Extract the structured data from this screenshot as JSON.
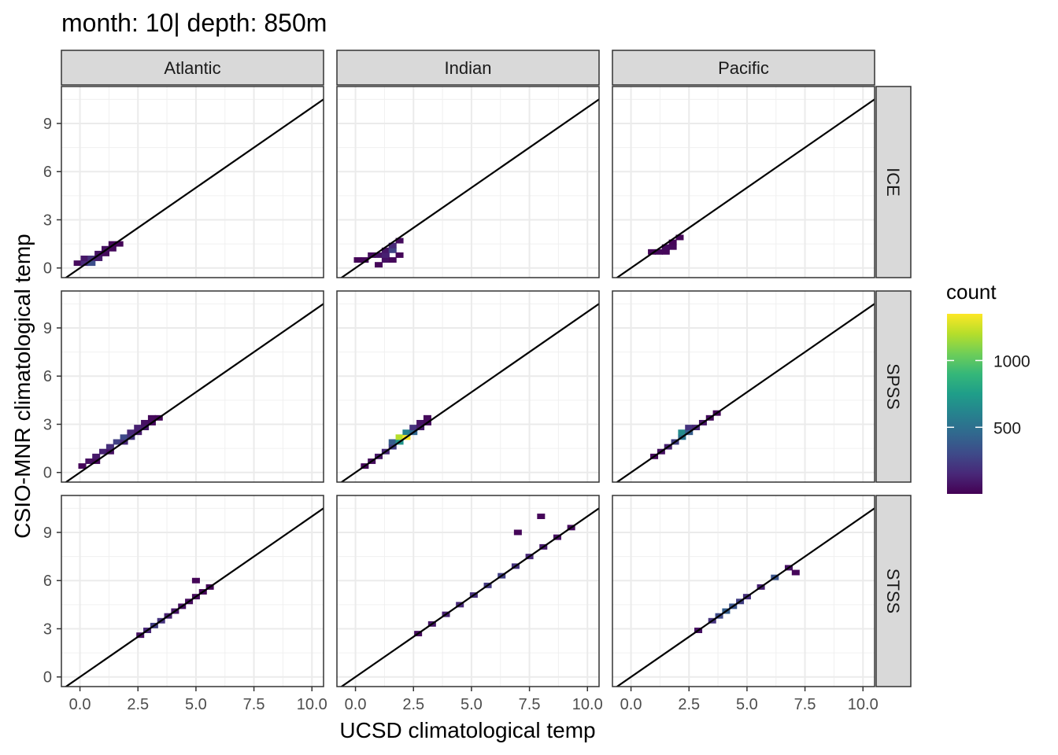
{
  "chart_data": {
    "type": "heatmap",
    "title": "month: 10| depth: 850m",
    "xlabel": "UCSD climatological temp",
    "ylabel": "CSIO-MNR climatological temp",
    "columns": [
      "Atlantic",
      "Indian",
      "Pacific"
    ],
    "rows": [
      "ICE",
      "SPSS",
      "STSS"
    ],
    "xlim": [
      -0.8,
      10.5
    ],
    "ylim": [
      -0.6,
      11.3
    ],
    "x_ticks": [
      0,
      2.5,
      5,
      7.5,
      10
    ],
    "x_tick_labels": [
      "0.0",
      "2.5",
      "5.0",
      "7.5",
      "10.0"
    ],
    "y_ticks": [
      0,
      3,
      6,
      9
    ],
    "y_tick_labels": [
      "0",
      "3",
      "6",
      "9"
    ],
    "reference_line": {
      "slope": 1,
      "intercept": 0
    },
    "grid": true,
    "bin_size": 0.34,
    "legend": {
      "title": "count",
      "position": "right",
      "range": [
        1,
        1350
      ],
      "ticks": [
        500,
        1000
      ],
      "tick_labels": [
        "500",
        "1000"
      ],
      "colorscale": [
        "#440154",
        "#482878",
        "#3e4a89",
        "#31688e",
        "#26828e",
        "#1f9e89",
        "#35b779",
        "#6ece58",
        "#b5de2b",
        "#fde725"
      ]
    },
    "panels": [
      {
        "column": "Atlantic",
        "row": "ICE",
        "bins": [
          {
            "x": -0.1,
            "y": 0.3,
            "count": 30
          },
          {
            "x": 0.2,
            "y": 0.3,
            "count": 150
          },
          {
            "x": 0.5,
            "y": 0.3,
            "count": 320
          },
          {
            "x": 0.2,
            "y": 0.6,
            "count": 90
          },
          {
            "x": 0.5,
            "y": 0.6,
            "count": 180
          },
          {
            "x": 0.8,
            "y": 0.6,
            "count": 110
          },
          {
            "x": 0.8,
            "y": 0.9,
            "count": 70
          },
          {
            "x": 1.1,
            "y": 0.9,
            "count": 40
          },
          {
            "x": 1.1,
            "y": 1.2,
            "count": 60
          },
          {
            "x": 1.4,
            "y": 1.2,
            "count": 30
          },
          {
            "x": 1.4,
            "y": 1.5,
            "count": 20
          },
          {
            "x": 1.7,
            "y": 1.5,
            "count": 15
          }
        ]
      },
      {
        "column": "Indian",
        "row": "ICE",
        "bins": [
          {
            "x": 0.1,
            "y": 0.5,
            "count": 15
          },
          {
            "x": 0.4,
            "y": 0.5,
            "count": 25
          },
          {
            "x": 0.7,
            "y": 0.8,
            "count": 40
          },
          {
            "x": 1.0,
            "y": 0.8,
            "count": 70
          },
          {
            "x": 1.0,
            "y": 0.2,
            "count": 20
          },
          {
            "x": 1.3,
            "y": 0.5,
            "count": 60
          },
          {
            "x": 1.3,
            "y": 0.8,
            "count": 120
          },
          {
            "x": 1.3,
            "y": 1.1,
            "count": 80
          },
          {
            "x": 1.6,
            "y": 1.1,
            "count": 260
          },
          {
            "x": 1.6,
            "y": 1.4,
            "count": 150
          },
          {
            "x": 1.9,
            "y": 1.7,
            "count": 40
          },
          {
            "x": 1.6,
            "y": 0.5,
            "count": 30
          },
          {
            "x": 1.9,
            "y": 0.8,
            "count": 20
          }
        ]
      },
      {
        "column": "Pacific",
        "row": "ICE",
        "bins": [
          {
            "x": 0.9,
            "y": 1.0,
            "count": 20
          },
          {
            "x": 1.2,
            "y": 1.0,
            "count": 30
          },
          {
            "x": 1.5,
            "y": 1.0,
            "count": 25
          },
          {
            "x": 1.5,
            "y": 1.3,
            "count": 45
          },
          {
            "x": 1.8,
            "y": 1.3,
            "count": 35
          },
          {
            "x": 1.8,
            "y": 1.6,
            "count": 20
          },
          {
            "x": 2.1,
            "y": 1.9,
            "count": 15
          }
        ]
      },
      {
        "column": "Atlantic",
        "row": "SPSS",
        "bins": [
          {
            "x": 0.1,
            "y": 0.4,
            "count": 20
          },
          {
            "x": 0.4,
            "y": 0.7,
            "count": 60
          },
          {
            "x": 0.7,
            "y": 0.7,
            "count": 30
          },
          {
            "x": 0.7,
            "y": 1.0,
            "count": 90
          },
          {
            "x": 1.0,
            "y": 1.3,
            "count": 120
          },
          {
            "x": 1.3,
            "y": 1.3,
            "count": 60
          },
          {
            "x": 1.3,
            "y": 1.6,
            "count": 180
          },
          {
            "x": 1.6,
            "y": 1.9,
            "count": 260
          },
          {
            "x": 1.9,
            "y": 1.9,
            "count": 150
          },
          {
            "x": 1.9,
            "y": 2.2,
            "count": 300
          },
          {
            "x": 2.2,
            "y": 2.2,
            "count": 200
          },
          {
            "x": 2.2,
            "y": 2.5,
            "count": 150
          },
          {
            "x": 2.5,
            "y": 2.5,
            "count": 100
          },
          {
            "x": 2.5,
            "y": 2.8,
            "count": 120
          },
          {
            "x": 2.8,
            "y": 2.8,
            "count": 90
          },
          {
            "x": 2.8,
            "y": 3.1,
            "count": 60
          },
          {
            "x": 3.1,
            "y": 3.1,
            "count": 40
          },
          {
            "x": 3.1,
            "y": 3.4,
            "count": 30
          },
          {
            "x": 3.4,
            "y": 3.4,
            "count": 20
          }
        ]
      },
      {
        "column": "Indian",
        "row": "SPSS",
        "bins": [
          {
            "x": 0.4,
            "y": 0.4,
            "count": 20
          },
          {
            "x": 0.7,
            "y": 0.7,
            "count": 40
          },
          {
            "x": 1.0,
            "y": 1.0,
            "count": 80
          },
          {
            "x": 1.3,
            "y": 1.3,
            "count": 150
          },
          {
            "x": 1.6,
            "y": 1.6,
            "count": 250
          },
          {
            "x": 1.6,
            "y": 1.9,
            "count": 400
          },
          {
            "x": 1.9,
            "y": 1.9,
            "count": 700
          },
          {
            "x": 1.9,
            "y": 2.2,
            "count": 1200
          },
          {
            "x": 2.2,
            "y": 2.2,
            "count": 1350
          },
          {
            "x": 2.2,
            "y": 2.5,
            "count": 600
          },
          {
            "x": 2.5,
            "y": 2.5,
            "count": 450
          },
          {
            "x": 2.5,
            "y": 2.8,
            "count": 200
          },
          {
            "x": 2.8,
            "y": 2.8,
            "count": 100
          },
          {
            "x": 2.8,
            "y": 3.1,
            "count": 70
          },
          {
            "x": 3.1,
            "y": 3.1,
            "count": 40
          },
          {
            "x": 3.1,
            "y": 3.4,
            "count": 30
          }
        ]
      },
      {
        "column": "Pacific",
        "row": "SPSS",
        "bins": [
          {
            "x": 1.0,
            "y": 1.0,
            "count": 30
          },
          {
            "x": 1.3,
            "y": 1.3,
            "count": 60
          },
          {
            "x": 1.6,
            "y": 1.6,
            "count": 120
          },
          {
            "x": 1.9,
            "y": 1.9,
            "count": 250
          },
          {
            "x": 2.2,
            "y": 2.2,
            "count": 500
          },
          {
            "x": 2.2,
            "y": 2.5,
            "count": 650
          },
          {
            "x": 2.5,
            "y": 2.5,
            "count": 400
          },
          {
            "x": 2.5,
            "y": 2.8,
            "count": 200
          },
          {
            "x": 2.8,
            "y": 2.8,
            "count": 150
          },
          {
            "x": 3.1,
            "y": 3.1,
            "count": 80
          },
          {
            "x": 3.4,
            "y": 3.4,
            "count": 40
          },
          {
            "x": 3.7,
            "y": 3.7,
            "count": 20
          }
        ]
      },
      {
        "column": "Atlantic",
        "row": "STSS",
        "bins": [
          {
            "x": 2.6,
            "y": 2.6,
            "count": 60
          },
          {
            "x": 2.9,
            "y": 2.9,
            "count": 150
          },
          {
            "x": 3.2,
            "y": 3.2,
            "count": 250
          },
          {
            "x": 3.5,
            "y": 3.5,
            "count": 200
          },
          {
            "x": 3.8,
            "y": 3.8,
            "count": 120
          },
          {
            "x": 4.1,
            "y": 4.1,
            "count": 80
          },
          {
            "x": 4.4,
            "y": 4.4,
            "count": 60
          },
          {
            "x": 4.7,
            "y": 4.7,
            "count": 40
          },
          {
            "x": 5.0,
            "y": 5.0,
            "count": 30
          },
          {
            "x": 5.3,
            "y": 5.3,
            "count": 20
          },
          {
            "x": 5.0,
            "y": 6.0,
            "count": 15
          },
          {
            "x": 5.6,
            "y": 5.6,
            "count": 15
          }
        ]
      },
      {
        "column": "Indian",
        "row": "STSS",
        "bins": [
          {
            "x": 2.7,
            "y": 2.7,
            "count": 40
          },
          {
            "x": 3.3,
            "y": 3.3,
            "count": 80
          },
          {
            "x": 3.9,
            "y": 3.9,
            "count": 120
          },
          {
            "x": 4.5,
            "y": 4.5,
            "count": 150
          },
          {
            "x": 5.1,
            "y": 5.1,
            "count": 180
          },
          {
            "x": 5.7,
            "y": 5.7,
            "count": 220
          },
          {
            "x": 6.3,
            "y": 6.3,
            "count": 250
          },
          {
            "x": 6.9,
            "y": 6.9,
            "count": 200
          },
          {
            "x": 7.5,
            "y": 7.5,
            "count": 150
          },
          {
            "x": 8.1,
            "y": 8.1,
            "count": 100
          },
          {
            "x": 8.7,
            "y": 8.7,
            "count": 60
          },
          {
            "x": 9.3,
            "y": 9.3,
            "count": 40
          },
          {
            "x": 8.0,
            "y": 10.0,
            "count": 20
          },
          {
            "x": 7.0,
            "y": 9.0,
            "count": 20
          }
        ]
      },
      {
        "column": "Pacific",
        "row": "STSS",
        "bins": [
          {
            "x": 2.9,
            "y": 2.9,
            "count": 60
          },
          {
            "x": 3.5,
            "y": 3.5,
            "count": 200
          },
          {
            "x": 3.8,
            "y": 3.8,
            "count": 300
          },
          {
            "x": 4.1,
            "y": 4.1,
            "count": 400
          },
          {
            "x": 4.4,
            "y": 4.4,
            "count": 350
          },
          {
            "x": 4.7,
            "y": 4.7,
            "count": 250
          },
          {
            "x": 5.0,
            "y": 5.0,
            "count": 180
          },
          {
            "x": 5.6,
            "y": 5.6,
            "count": 120
          },
          {
            "x": 6.2,
            "y": 6.2,
            "count": 350
          },
          {
            "x": 6.8,
            "y": 6.8,
            "count": 60
          },
          {
            "x": 7.1,
            "y": 6.5,
            "count": 20
          }
        ]
      }
    ]
  }
}
